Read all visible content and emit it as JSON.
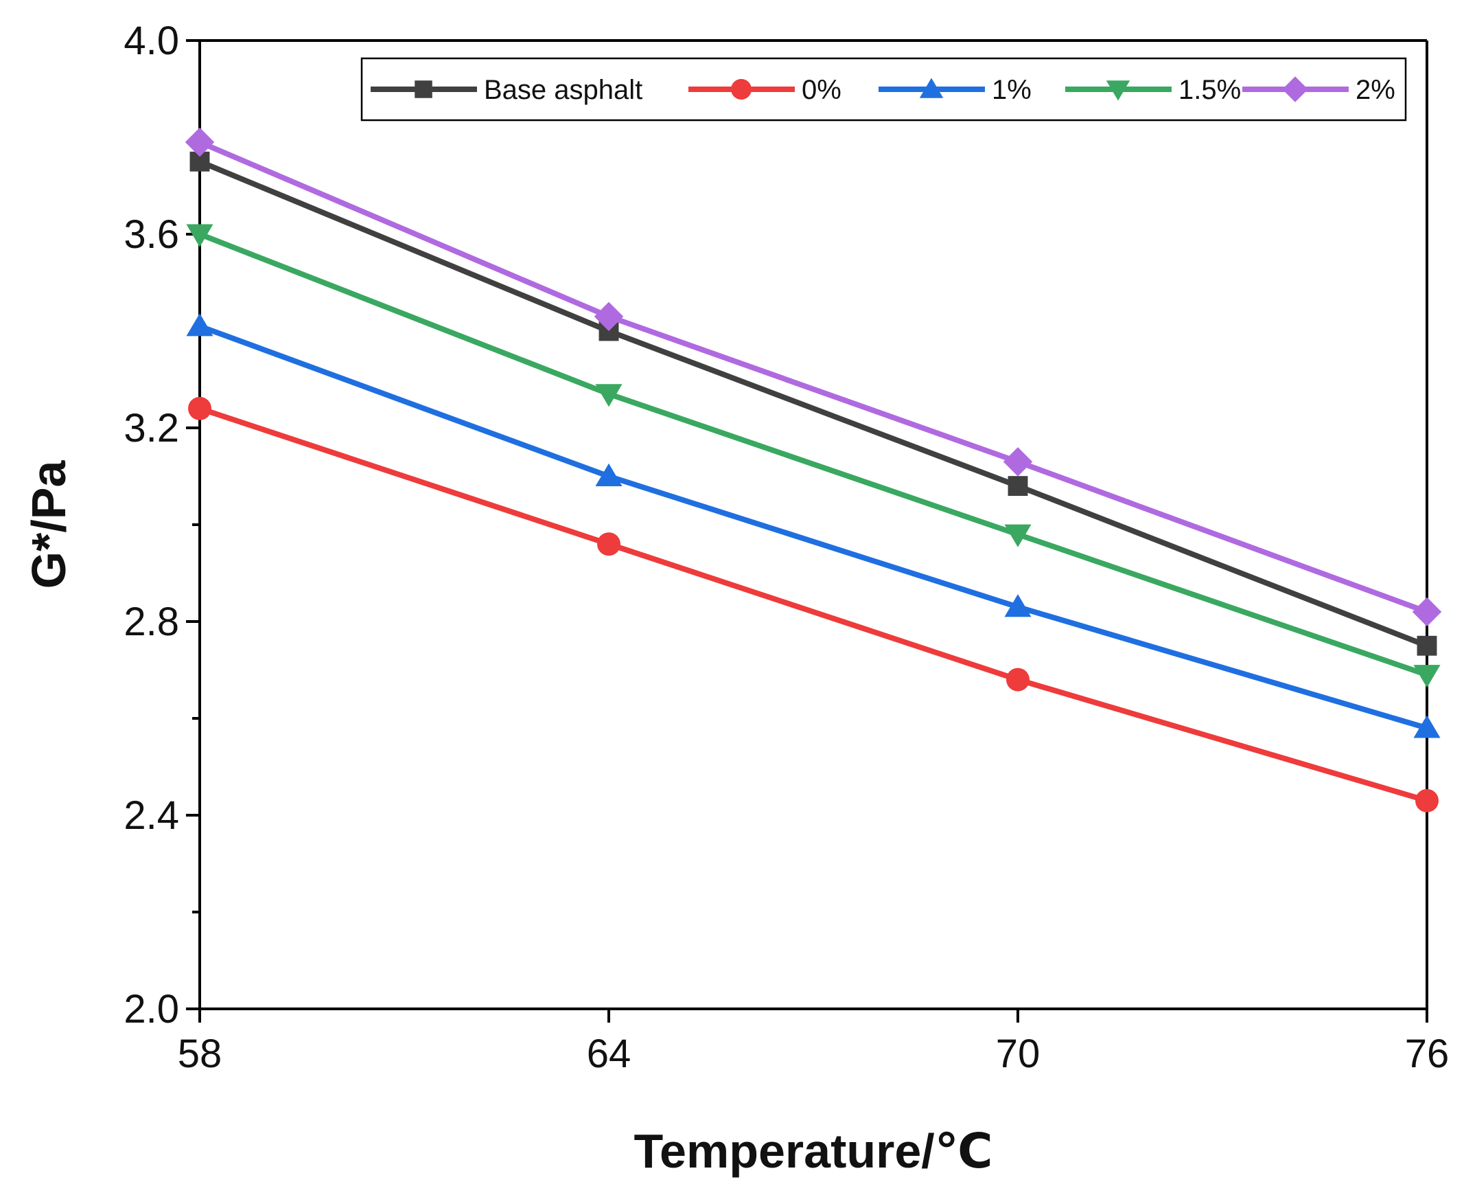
{
  "chart_data": {
    "type": "line",
    "title": "",
    "xlabel": "Temperature/℃",
    "ylabel": "G*/Pa",
    "x": [
      58,
      64,
      70,
      76
    ],
    "x_tick_labels": [
      "58",
      "64",
      "70",
      "76"
    ],
    "xlim": [
      58,
      76
    ],
    "ylim": [
      2.0,
      4.0
    ],
    "y_ticks": [
      2.0,
      2.4,
      2.8,
      3.2,
      3.6,
      4.0
    ],
    "y_tick_labels": [
      "2.0",
      "2.4",
      "2.8",
      "3.2",
      "3.6",
      "4.0"
    ],
    "grid": false,
    "legend_position": "top",
    "series": [
      {
        "name": "Base asphalt",
        "color": "#404040",
        "marker": "square",
        "values": [
          3.75,
          3.4,
          3.08,
          2.75
        ]
      },
      {
        "name": "0%",
        "color": "#ee3b3b",
        "marker": "circle",
        "values": [
          3.24,
          2.96,
          2.68,
          2.43
        ]
      },
      {
        "name": "1%",
        "color": "#1f6fe0",
        "marker": "triangle-up",
        "values": [
          3.41,
          3.1,
          2.83,
          2.58
        ]
      },
      {
        "name": "1.5%",
        "color": "#3aa860",
        "marker": "triangle-down",
        "values": [
          3.6,
          3.27,
          2.98,
          2.69
        ]
      },
      {
        "name": "2%",
        "color": "#b06ae0",
        "marker": "diamond",
        "values": [
          3.79,
          3.43,
          3.13,
          2.82
        ]
      }
    ]
  }
}
